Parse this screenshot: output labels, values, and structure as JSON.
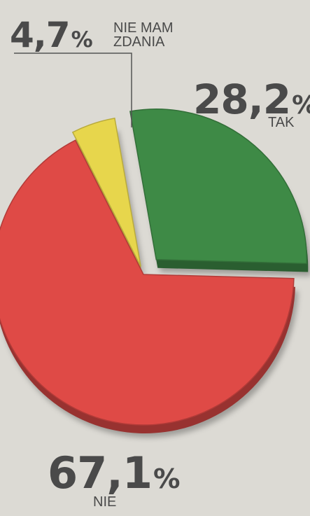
{
  "chart_data": {
    "type": "pie",
    "slices": [
      {
        "label": "TAK",
        "value": 28.2,
        "display": "28,2",
        "color": "#3e8a46"
      },
      {
        "label": "NIE",
        "value": 67.1,
        "display": "67,1",
        "color": "#df4a46"
      },
      {
        "label": "NIE MAM ZDANIA",
        "value": 4.7,
        "display": "4,7",
        "color": "#e7d64c"
      }
    ],
    "percent_sign": "%",
    "captions": {
      "no_opinion_line1": "NIE MAM",
      "no_opinion_line2": "ZDANIA"
    },
    "colors": {
      "background": "#dcdad4",
      "text": "#4a4a4a",
      "leader_line": "#555555"
    }
  }
}
